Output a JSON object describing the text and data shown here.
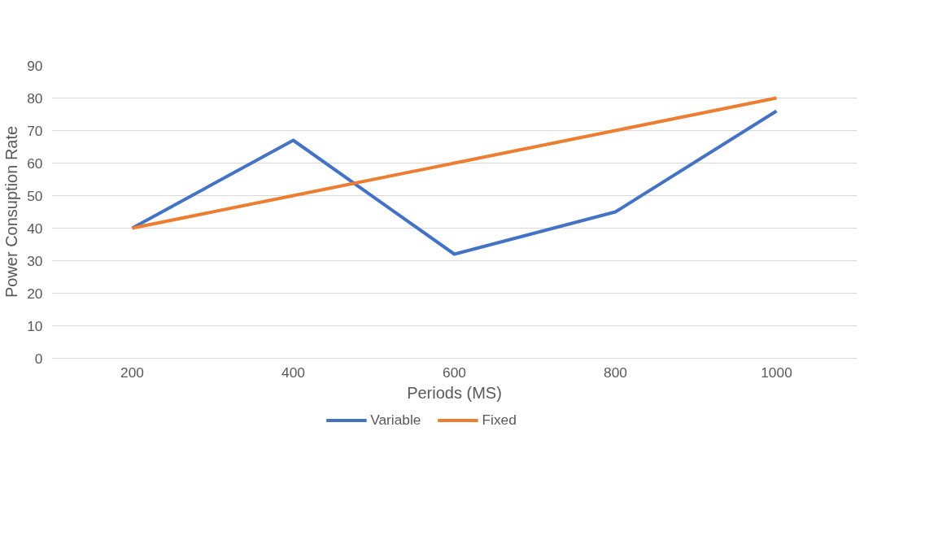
{
  "chart_data": {
    "type": "line",
    "xlabel": "Periods (MS)",
    "ylabel": "Power Consuption Rate",
    "categories": [
      "200",
      "400",
      "600",
      "800",
      "1000"
    ],
    "series": [
      {
        "name": "Variable",
        "color": "#4472c4",
        "values": [
          40,
          67,
          32,
          45,
          76
        ]
      },
      {
        "name": "Fixed",
        "color": "#ed7d31",
        "values": [
          40,
          50,
          60,
          70,
          80
        ]
      }
    ],
    "ylim": [
      0,
      90
    ],
    "yticks": [
      0,
      10,
      20,
      30,
      40,
      50,
      60,
      70,
      80,
      90
    ],
    "grid": "y",
    "legend": "bottom"
  }
}
